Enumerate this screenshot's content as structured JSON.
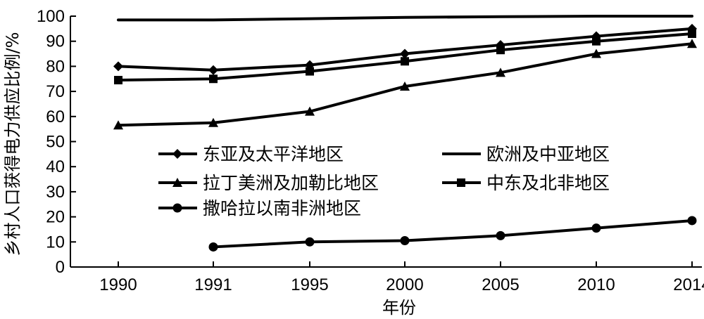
{
  "chart_data": {
    "type": "line",
    "xlabel": "年份",
    "ylabel": "乡村人口获得电力供应比例/%",
    "categories": [
      "1990",
      "1991",
      "1995",
      "2000",
      "2005",
      "2010",
      "2014"
    ],
    "ylim": [
      0,
      100
    ],
    "yticks": [
      "0",
      "10",
      "20",
      "30",
      "40",
      "50",
      "60",
      "70",
      "80",
      "90",
      "100"
    ],
    "grid": false,
    "legend_placement": "center-left",
    "series": [
      {
        "name": "东亚及太平洋地区",
        "marker": "diamond",
        "values": [
          80,
          78.5,
          80.5,
          85,
          88.5,
          92,
          95
        ]
      },
      {
        "name": "欧洲及中亚地区",
        "marker": "none",
        "values": [
          98.5,
          98.5,
          99,
          99.5,
          99.8,
          100,
          100
        ]
      },
      {
        "name": "拉丁美洲及加勒比地区",
        "marker": "triangle",
        "values": [
          56.5,
          57.5,
          62,
          72,
          77.5,
          85,
          89
        ]
      },
      {
        "name": "中东及北非地区",
        "marker": "square",
        "values": [
          74.5,
          75,
          78,
          82,
          86.5,
          90,
          93
        ]
      },
      {
        "name": "撒哈拉以南非洲地区",
        "marker": "circle",
        "values": [
          null,
          8,
          10,
          10.5,
          12.5,
          15.5,
          18.5
        ]
      }
    ]
  }
}
